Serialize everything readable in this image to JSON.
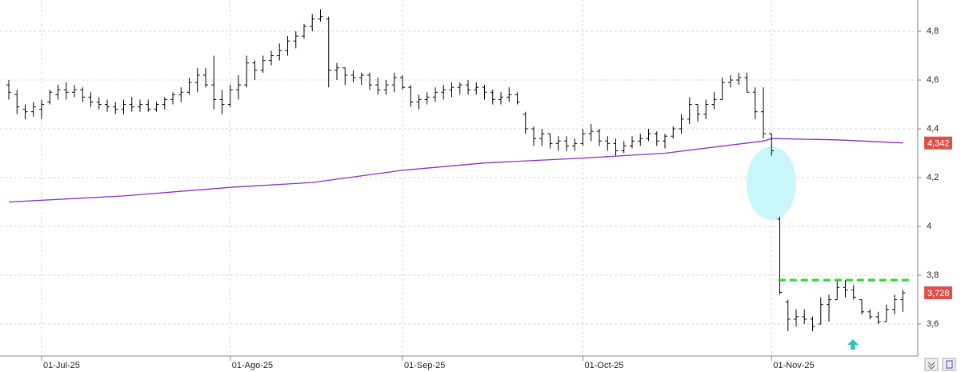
{
  "chart_data": {
    "type": "ohlc",
    "categories": [
      "2025-06-25",
      "2025-06-26",
      "2025-06-27",
      "2025-06-30",
      "2025-07-01",
      "2025-07-02",
      "2025-07-03",
      "2025-07-04",
      "2025-07-07",
      "2025-07-08",
      "2025-07-09",
      "2025-07-10",
      "2025-07-11",
      "2025-07-14",
      "2025-07-15",
      "2025-07-16",
      "2025-07-17",
      "2025-07-18",
      "2025-07-21",
      "2025-07-22",
      "2025-07-23",
      "2025-07-24",
      "2025-07-25",
      "2025-07-28",
      "2025-07-29",
      "2025-07-30",
      "2025-07-31",
      "2025-08-01",
      "2025-08-04",
      "2025-08-05",
      "2025-08-06",
      "2025-08-07",
      "2025-08-08",
      "2025-08-11",
      "2025-08-12",
      "2025-08-13",
      "2025-08-14",
      "2025-08-15",
      "2025-08-18",
      "2025-08-19",
      "2025-08-20",
      "2025-08-21",
      "2025-08-22",
      "2025-08-25",
      "2025-08-26",
      "2025-08-27",
      "2025-08-28",
      "2025-08-29",
      "2025-09-01",
      "2025-09-02",
      "2025-09-03",
      "2025-09-04",
      "2025-09-05",
      "2025-09-08",
      "2025-09-09",
      "2025-09-10",
      "2025-09-11",
      "2025-09-12",
      "2025-09-15",
      "2025-09-16",
      "2025-09-17",
      "2025-09-18",
      "2025-09-19",
      "2025-09-22",
      "2025-09-23",
      "2025-09-24",
      "2025-09-25",
      "2025-09-26",
      "2025-09-29",
      "2025-09-30",
      "2025-10-01",
      "2025-10-02",
      "2025-10-03",
      "2025-10-06",
      "2025-10-07",
      "2025-10-08",
      "2025-10-09",
      "2025-10-10",
      "2025-10-13",
      "2025-10-14",
      "2025-10-15",
      "2025-10-16",
      "2025-10-17",
      "2025-10-20",
      "2025-10-21",
      "2025-10-22",
      "2025-10-23",
      "2025-10-24",
      "2025-10-27",
      "2025-10-28",
      "2025-10-29",
      "2025-10-30",
      "2025-10-31",
      "2025-11-03",
      "2025-11-04",
      "2025-11-05",
      "2025-11-06",
      "2025-11-07",
      "2025-11-10",
      "2025-11-11",
      "2025-11-12",
      "2025-11-13",
      "2025-11-14",
      "2025-11-17",
      "2025-11-18",
      "2025-11-19",
      "2025-11-20",
      "2025-11-21",
      "2025-11-24",
      "2025-11-25"
    ],
    "open": [
      4.58,
      4.54,
      4.48,
      4.47,
      4.48,
      4.51,
      4.54,
      4.56,
      4.55,
      4.56,
      4.53,
      4.51,
      4.5,
      4.49,
      4.48,
      4.5,
      4.49,
      4.5,
      4.48,
      4.5,
      4.52,
      4.54,
      4.55,
      4.59,
      4.62,
      4.58,
      4.52,
      4.5,
      4.56,
      4.58,
      4.67,
      4.64,
      4.68,
      4.7,
      4.72,
      4.76,
      4.78,
      4.82,
      4.85,
      4.85,
      4.64,
      4.65,
      4.62,
      4.61,
      4.62,
      4.58,
      4.56,
      4.58,
      4.61,
      4.57,
      4.51,
      4.52,
      4.53,
      4.55,
      4.56,
      4.57,
      4.58,
      4.56,
      4.57,
      4.55,
      4.52,
      4.53,
      4.54,
      4.46,
      4.4,
      4.36,
      4.38,
      4.34,
      4.35,
      4.33,
      4.34,
      4.38,
      4.39,
      4.35,
      4.34,
      4.31,
      4.33,
      4.35,
      4.36,
      4.38,
      4.35,
      4.37,
      4.4,
      4.44,
      4.5,
      4.46,
      4.5,
      4.52,
      4.59,
      4.6,
      4.61,
      4.55,
      4.47,
      4.38,
      4.03,
      3.69,
      3.62,
      3.63,
      3.62,
      3.6,
      3.68,
      3.7,
      3.75,
      3.74,
      3.7,
      3.65,
      3.63,
      3.61,
      3.66,
      3.7
    ],
    "high": [
      4.6,
      4.56,
      4.5,
      4.51,
      4.52,
      4.56,
      4.58,
      4.59,
      4.58,
      4.57,
      4.55,
      4.53,
      4.52,
      4.51,
      4.52,
      4.53,
      4.52,
      4.52,
      4.51,
      4.53,
      4.55,
      4.57,
      4.61,
      4.65,
      4.65,
      4.7,
      4.56,
      4.58,
      4.62,
      4.7,
      4.68,
      4.7,
      4.72,
      4.75,
      4.78,
      4.8,
      4.83,
      4.87,
      4.89,
      4.86,
      4.67,
      4.65,
      4.64,
      4.63,
      4.63,
      4.61,
      4.6,
      4.63,
      4.62,
      4.58,
      4.54,
      4.55,
      4.57,
      4.58,
      4.59,
      4.59,
      4.6,
      4.59,
      4.58,
      4.56,
      4.55,
      4.57,
      4.55,
      4.47,
      4.41,
      4.4,
      4.38,
      4.37,
      4.37,
      4.36,
      4.4,
      4.42,
      4.4,
      4.37,
      4.36,
      4.35,
      4.37,
      4.38,
      4.4,
      4.39,
      4.38,
      4.41,
      4.46,
      4.53,
      4.5,
      4.52,
      4.55,
      4.61,
      4.62,
      4.63,
      4.63,
      4.57,
      4.57,
      4.38,
      4.04,
      3.7,
      3.66,
      3.66,
      3.63,
      3.71,
      3.72,
      3.78,
      3.78,
      3.76,
      3.7,
      3.66,
      3.65,
      3.68,
      3.72,
      3.74
    ],
    "low": [
      4.52,
      4.46,
      4.44,
      4.45,
      4.44,
      4.5,
      4.52,
      4.52,
      4.53,
      4.51,
      4.49,
      4.48,
      4.47,
      4.46,
      4.46,
      4.47,
      4.47,
      4.47,
      4.47,
      4.48,
      4.5,
      4.51,
      4.54,
      4.55,
      4.57,
      4.48,
      4.46,
      4.49,
      4.52,
      4.57,
      4.6,
      4.63,
      4.66,
      4.68,
      4.7,
      4.73,
      4.77,
      4.8,
      4.84,
      4.57,
      4.6,
      4.58,
      4.59,
      4.58,
      4.56,
      4.54,
      4.54,
      4.55,
      4.56,
      4.49,
      4.48,
      4.5,
      4.51,
      4.52,
      4.53,
      4.54,
      4.54,
      4.54,
      4.52,
      4.5,
      4.5,
      4.51,
      4.5,
      4.38,
      4.33,
      4.33,
      4.32,
      4.31,
      4.31,
      4.31,
      4.33,
      4.35,
      4.33,
      4.31,
      4.29,
      4.3,
      4.32,
      4.33,
      4.35,
      4.33,
      4.32,
      4.36,
      4.38,
      4.42,
      4.43,
      4.44,
      4.48,
      4.52,
      4.57,
      4.58,
      4.55,
      4.44,
      4.36,
      4.29,
      3.72,
      3.57,
      3.59,
      3.6,
      3.57,
      3.6,
      3.61,
      3.7,
      3.71,
      3.7,
      3.64,
      3.62,
      3.6,
      3.61,
      3.64,
      3.65
    ],
    "close": [
      4.55,
      4.49,
      4.47,
      4.49,
      4.5,
      4.55,
      4.56,
      4.55,
      4.56,
      4.53,
      4.51,
      4.5,
      4.49,
      4.48,
      4.5,
      4.49,
      4.5,
      4.48,
      4.5,
      4.52,
      4.54,
      4.55,
      4.59,
      4.62,
      4.58,
      4.52,
      4.5,
      4.56,
      4.58,
      4.67,
      4.64,
      4.68,
      4.7,
      4.72,
      4.76,
      4.78,
      4.82,
      4.85,
      4.86,
      4.64,
      4.65,
      4.62,
      4.61,
      4.62,
      4.58,
      4.56,
      4.58,
      4.61,
      4.57,
      4.51,
      4.52,
      4.53,
      4.55,
      4.56,
      4.57,
      4.58,
      4.56,
      4.57,
      4.55,
      4.52,
      4.53,
      4.54,
      4.51,
      4.4,
      4.36,
      4.38,
      4.34,
      4.35,
      4.33,
      4.34,
      4.38,
      4.39,
      4.35,
      4.34,
      4.31,
      4.33,
      4.35,
      4.36,
      4.38,
      4.35,
      4.37,
      4.4,
      4.44,
      4.5,
      4.46,
      4.5,
      4.52,
      4.59,
      4.6,
      4.61,
      4.55,
      4.47,
      4.38,
      4.31,
      3.73,
      3.62,
      3.63,
      3.62,
      3.59,
      3.68,
      3.7,
      3.75,
      3.74,
      3.71,
      3.65,
      3.63,
      3.61,
      3.66,
      3.7,
      3.728
    ],
    "bar_color": "#000000",
    "moving_average": {
      "color": "#8e2dc5",
      "x": [
        "2025-06-25",
        "2025-07-15",
        "2025-08-01",
        "2025-08-15",
        "2025-09-01",
        "2025-09-15",
        "2025-10-01",
        "2025-10-15",
        "2025-10-31",
        "2025-11-03",
        "2025-11-13",
        "2025-11-25"
      ],
      "values": [
        4.1,
        4.125,
        4.16,
        4.18,
        4.23,
        4.26,
        4.28,
        4.3,
        4.35,
        4.36,
        4.355,
        4.342
      ]
    },
    "level_line": {
      "value": 3.78,
      "color": "#22dd22",
      "x": [
        "2025-11-05",
        "2025-11-25"
      ]
    },
    "price_labels": [
      {
        "value": 4.342,
        "label": "4,342"
      },
      {
        "value": 3.728,
        "label": "3,728"
      }
    ],
    "ylim": [
      3.469,
      4.928
    ],
    "yticks": [
      {
        "value": 4.8,
        "label": "4,8"
      },
      {
        "value": 4.6,
        "label": "4,6"
      },
      {
        "value": 4.4,
        "label": "4,4"
      },
      {
        "value": 4.2,
        "label": "4,2"
      },
      4,
      {
        "value": 3.8,
        "label": "3,8"
      },
      {
        "value": 3.6,
        "label": "3,6"
      }
    ],
    "xticks": [
      {
        "value": "2025-07-01",
        "label": "01-Jul-25"
      },
      {
        "value": "2025-08-01",
        "label": "01-Ago-25"
      },
      {
        "value": "2025-09-01",
        "label": "01-Sep-25"
      },
      {
        "value": "2025-10-01",
        "label": "01-Oct-25"
      },
      {
        "value": "2025-11-01",
        "label": "01-Nov-25"
      }
    ],
    "grid": true
  }
}
